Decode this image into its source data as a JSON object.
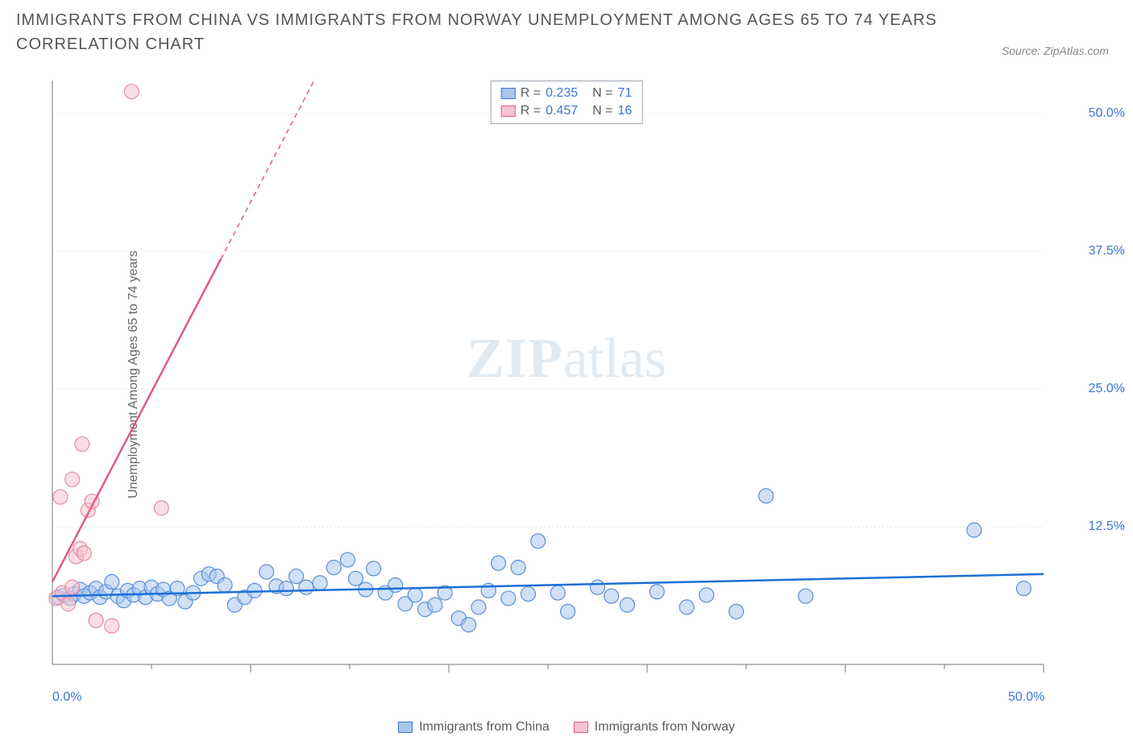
{
  "title": "IMMIGRANTS FROM CHINA VS IMMIGRANTS FROM NORWAY UNEMPLOYMENT AMONG AGES 65 TO 74 YEARS CORRELATION CHART",
  "source": "Source: ZipAtlas.com",
  "y_axis_label": "Unemployment Among Ages 65 to 74 years",
  "watermark_a": "ZIP",
  "watermark_b": "atlas",
  "chart": {
    "type": "scatter",
    "background_color": "#ffffff",
    "grid_color": "#e6e6e6",
    "axis_line_color": "#777777",
    "tick_line_color": "#777777",
    "xlim": [
      0,
      50
    ],
    "ylim": [
      0,
      53
    ],
    "x_ticks_major": [
      10,
      20,
      30,
      40,
      50
    ],
    "x_ticks_minor": [
      5,
      15,
      25,
      35,
      45
    ],
    "y_gridlines": [
      12.5,
      25.0,
      37.5,
      50.0
    ],
    "y_tick_labels": [
      "12.5%",
      "25.0%",
      "37.5%",
      "50.0%"
    ],
    "x_min_label": "0.0%",
    "x_max_label": "50.0%",
    "marker_radius": 9,
    "marker_stroke_width": 1.2,
    "trend_line_width": 2.5,
    "trend_dash": "6,5"
  },
  "legend_top": {
    "rows": [
      {
        "fill": "#a9c6ec",
        "stroke": "#3b76d6",
        "r_label": "R =",
        "r_value": "0.235",
        "n_label": "N =",
        "n_value": "71"
      },
      {
        "fill": "#f6c3d0",
        "stroke": "#e05a88",
        "r_label": "R =",
        "r_value": "0.457",
        "n_label": "N =",
        "n_value": "16"
      }
    ]
  },
  "legend_bottom": {
    "items": [
      {
        "fill": "#a9c6ec",
        "stroke": "#3b76d6",
        "label": "Immigrants from China"
      },
      {
        "fill": "#f6c3d0",
        "stroke": "#e05a88",
        "label": "Immigrants from Norway"
      }
    ]
  },
  "series": [
    {
      "name": "Immigrants from China",
      "fill": "#a9c6ec",
      "fill_opacity": 0.55,
      "stroke": "#5a8fd6",
      "trend_color": "#1d6fd6",
      "trend": {
        "x1": 0,
        "y1": 6.2,
        "x2": 50,
        "y2": 8.2,
        "solid_until_x": 50
      },
      "points": [
        [
          0.3,
          6.1
        ],
        [
          0.6,
          6.3
        ],
        [
          0.9,
          6.0
        ],
        [
          1.1,
          6.4
        ],
        [
          1.4,
          6.8
        ],
        [
          1.6,
          6.2
        ],
        [
          1.9,
          6.5
        ],
        [
          2.2,
          6.9
        ],
        [
          2.4,
          6.1
        ],
        [
          2.7,
          6.6
        ],
        [
          3.0,
          7.5
        ],
        [
          3.3,
          6.2
        ],
        [
          3.6,
          5.8
        ],
        [
          3.8,
          6.7
        ],
        [
          4.1,
          6.3
        ],
        [
          4.4,
          6.9
        ],
        [
          4.7,
          6.1
        ],
        [
          5.0,
          7.0
        ],
        [
          5.3,
          6.4
        ],
        [
          5.6,
          6.8
        ],
        [
          5.9,
          6.0
        ],
        [
          6.3,
          6.9
        ],
        [
          6.7,
          5.7
        ],
        [
          7.1,
          6.5
        ],
        [
          7.5,
          7.8
        ],
        [
          7.9,
          8.2
        ],
        [
          8.3,
          8.0
        ],
        [
          8.7,
          7.2
        ],
        [
          9.2,
          5.4
        ],
        [
          9.7,
          6.1
        ],
        [
          10.2,
          6.7
        ],
        [
          10.8,
          8.4
        ],
        [
          11.3,
          7.1
        ],
        [
          11.8,
          6.9
        ],
        [
          12.3,
          8.0
        ],
        [
          12.8,
          7.0
        ],
        [
          13.5,
          7.4
        ],
        [
          14.2,
          8.8
        ],
        [
          14.9,
          9.5
        ],
        [
          15.3,
          7.8
        ],
        [
          15.8,
          6.8
        ],
        [
          16.2,
          8.7
        ],
        [
          16.8,
          6.5
        ],
        [
          17.3,
          7.2
        ],
        [
          17.8,
          5.5
        ],
        [
          18.3,
          6.3
        ],
        [
          18.8,
          5.0
        ],
        [
          19.3,
          5.4
        ],
        [
          19.8,
          6.5
        ],
        [
          20.5,
          4.2
        ],
        [
          21.0,
          3.6
        ],
        [
          21.5,
          5.2
        ],
        [
          22.0,
          6.7
        ],
        [
          22.5,
          9.2
        ],
        [
          23.0,
          6.0
        ],
        [
          23.5,
          8.8
        ],
        [
          24.0,
          6.4
        ],
        [
          24.5,
          11.2
        ],
        [
          25.5,
          6.5
        ],
        [
          26.0,
          4.8
        ],
        [
          27.5,
          7.0
        ],
        [
          28.2,
          6.2
        ],
        [
          29.0,
          5.4
        ],
        [
          30.5,
          6.6
        ],
        [
          32.0,
          5.2
        ],
        [
          33.0,
          6.3
        ],
        [
          34.5,
          4.8
        ],
        [
          36.0,
          15.3
        ],
        [
          38.0,
          6.2
        ],
        [
          46.5,
          12.2
        ],
        [
          49.0,
          6.9
        ]
      ]
    },
    {
      "name": "Immigrants from Norway",
      "fill": "#f6c3d0",
      "fill_opacity": 0.55,
      "stroke": "#e68aa5",
      "trend_color": "#e05a88",
      "trend": {
        "x1": 0,
        "y1": 7.5,
        "x2": 13.2,
        "y2": 53,
        "solid_until_x": 8.5
      },
      "points": [
        [
          0.2,
          6.0
        ],
        [
          0.5,
          6.5
        ],
        [
          0.8,
          5.5
        ],
        [
          1.0,
          7.0
        ],
        [
          1.2,
          9.8
        ],
        [
          1.4,
          10.5
        ],
        [
          1.6,
          10.1
        ],
        [
          1.8,
          14.0
        ],
        [
          2.0,
          14.8
        ],
        [
          1.0,
          16.8
        ],
        [
          0.4,
          15.2
        ],
        [
          2.2,
          4.0
        ],
        [
          3.0,
          3.5
        ],
        [
          1.5,
          20.0
        ],
        [
          5.5,
          14.2
        ],
        [
          4.0,
          52.0
        ]
      ]
    }
  ]
}
